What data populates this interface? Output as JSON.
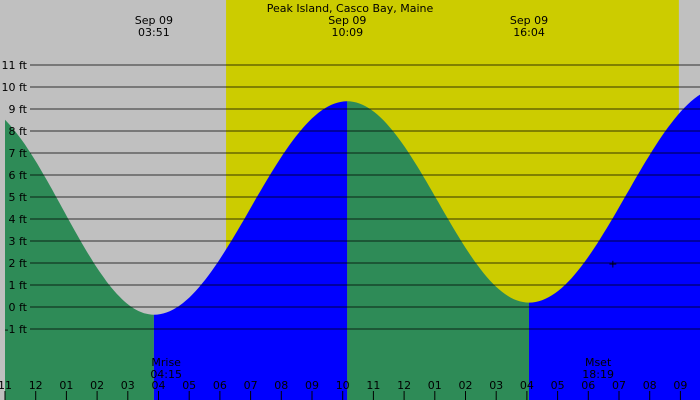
{
  "colors": {
    "background": "#c0c0c0",
    "daylight": "#cccc00",
    "falling": "#2e8b57",
    "rising": "#0000ff",
    "gridline": "#000000"
  },
  "chart_data": {
    "type": "area",
    "title": "Peak Island, Casco Bay, Maine",
    "unit": "ft",
    "ylim": [
      -1.8,
      11.5
    ],
    "xlim": [
      -1.0,
      22.5
    ],
    "grid": true,
    "y_ticks": [
      -1,
      0,
      1,
      2,
      3,
      4,
      5,
      6,
      7,
      8,
      9,
      10,
      11
    ],
    "y_tick_labels": [
      "-1 ft",
      "0 ft",
      "1 ft",
      "2 ft",
      "3 ft",
      "4 ft",
      "5 ft",
      "6 ft",
      "7 ft",
      "8 ft",
      "9 ft",
      "10 ft",
      "11 ft"
    ],
    "x_ticks": [
      -1,
      0,
      1,
      2,
      3,
      4,
      5,
      6,
      7,
      8,
      9,
      10,
      11,
      12,
      13,
      14,
      15,
      16,
      17,
      18,
      19,
      20,
      21,
      22
    ],
    "x_tick_labels": [
      "11",
      "12",
      "01",
      "02",
      "03",
      "04",
      "05",
      "06",
      "07",
      "08",
      "09",
      "10",
      "11",
      "12",
      "01",
      "02",
      "03",
      "04",
      "05",
      "06",
      "07",
      "08",
      "09",
      "10"
    ],
    "daylight": [
      6.2,
      20.95
    ],
    "extremes": [
      {
        "date": "Sep 09",
        "time": "03:51",
        "t": 3.85,
        "type": "low",
        "height": -0.35
      },
      {
        "date": "Sep 09",
        "time": "10:09",
        "t": 10.15,
        "type": "high",
        "height": 9.35
      },
      {
        "date": "Sep 09",
        "time": "16:04",
        "t": 16.07,
        "type": "low",
        "height": 0.2
      },
      {
        "type": "high",
        "t": 22.4,
        "height": 10.0
      }
    ],
    "start": {
      "t": -1.0,
      "height": 9.3
    },
    "prev_high_t": -2.1,
    "moon_events": [
      {
        "label": "Mrise",
        "time": "04:15",
        "t": 4.25
      },
      {
        "label": "Mset",
        "time": "18:19",
        "t": 18.32
      }
    ],
    "marker": {
      "symbol": "+",
      "t": 18.8,
      "height": 1.97
    }
  }
}
